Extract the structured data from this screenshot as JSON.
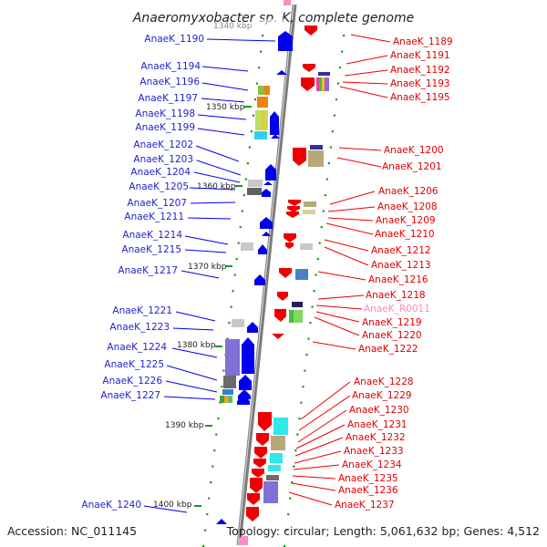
{
  "title": "Anaeromyxobacter sp. K, complete genome",
  "footer": {
    "accession": "Accession: NC_011145",
    "summary": "Topology: circular; Length: 5,061,632 bp; Genes: 4,512"
  },
  "partial_ticks": [
    "1340 kbp"
  ],
  "kbp_ticks": [
    "1350 kbp",
    "1360 kbp",
    "1370 kbp",
    "1380 kbp",
    "1390 kbp",
    "1400 kbp"
  ],
  "left_labels": [
    "AnaeK_1190",
    "AnaeK_1194",
    "AnaeK_1196",
    "AnaeK_1197",
    "AnaeK_1198",
    "AnaeK_1199",
    "AnaeK_1202",
    "AnaeK_1203",
    "AnaeK_1204",
    "AnaeK_1205",
    "AnaeK_1207",
    "AnaeK_1211",
    "AnaeK_1214",
    "AnaeK_1215",
    "AnaeK_1217",
    "AnaeK_1221",
    "AnaeK_1223",
    "AnaeK_1224",
    "AnaeK_1225",
    "AnaeK_1226",
    "AnaeK_1227",
    "AnaeK_1240"
  ],
  "right_labels": [
    "AnaeK_1189",
    "AnaeK_1191",
    "AnaeK_1192",
    "AnaeK_1193",
    "AnaeK_1195",
    "AnaeK_1200",
    "AnaeK_1201",
    "AnaeK_1206",
    "AnaeK_1208",
    "AnaeK_1209",
    "AnaeK_1210",
    "AnaeK_1212",
    "AnaeK_1213",
    "AnaeK_1216",
    "AnaeK_1218",
    "AnaeK_R0011",
    "AnaeK_1219",
    "AnaeK_1220",
    "AnaeK_1222",
    "AnaeK_1228",
    "AnaeK_1229",
    "AnaeK_1230",
    "AnaeK_1231",
    "AnaeK_1232",
    "AnaeK_1233",
    "AnaeK_1234",
    "AnaeK_1235",
    "AnaeK_1236",
    "AnaeK_1237"
  ],
  "colors": {
    "forward_strand": "#0000ee",
    "reverse_strand": "#ee0000",
    "rna": "#ff8ab8",
    "backbone": "#8c8c8c",
    "tick": "#1a9a1a"
  }
}
